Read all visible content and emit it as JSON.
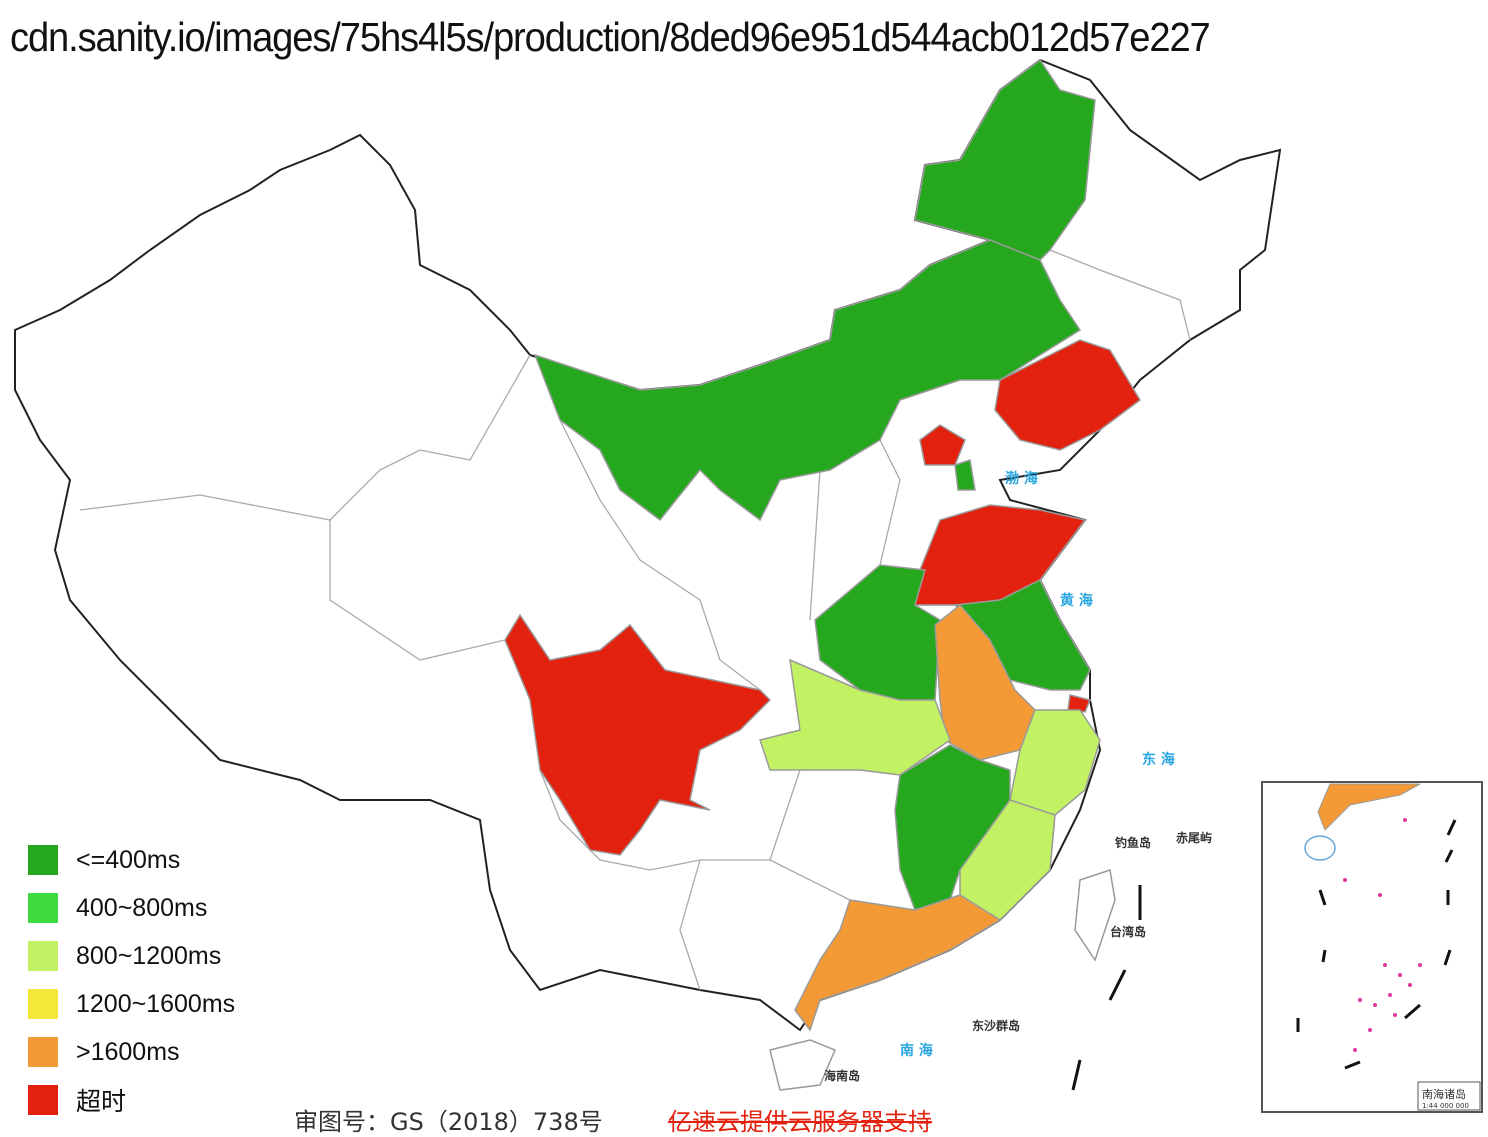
{
  "header": {
    "url": "cdn.sanity.io/images/75hs4l5s/production/8ded96e951d544acb012d57e227"
  },
  "legend": [
    {
      "label": "<=400ms",
      "color": "#26a81e"
    },
    {
      "label": "400~800ms",
      "color": "#3fdc3f"
    },
    {
      "label": "800~1200ms",
      "color": "#c2f263"
    },
    {
      "label": "1200~1600ms",
      "color": "#f5e83a"
    },
    {
      "label": ">1600ms",
      "color": "#f39a37"
    },
    {
      "label": "超时",
      "color": "#e3210f"
    }
  ],
  "map_labels": {
    "bohai": "渤 海",
    "huanghai": "黄 海",
    "donghai": "东 海",
    "nanhai": "南 海",
    "taiwan": "台湾岛",
    "diaoyu": "钓鱼岛",
    "chiwei": "赤尾屿",
    "dongsha": "东沙群岛",
    "hainan": "海南岛",
    "inset_title": "南海诸岛",
    "inset_scale": "1:44 000 000"
  },
  "footer": {
    "approval_number": "审图号：GS（2018）738号",
    "support_text": "亿速云提供云服务器支持"
  }
}
